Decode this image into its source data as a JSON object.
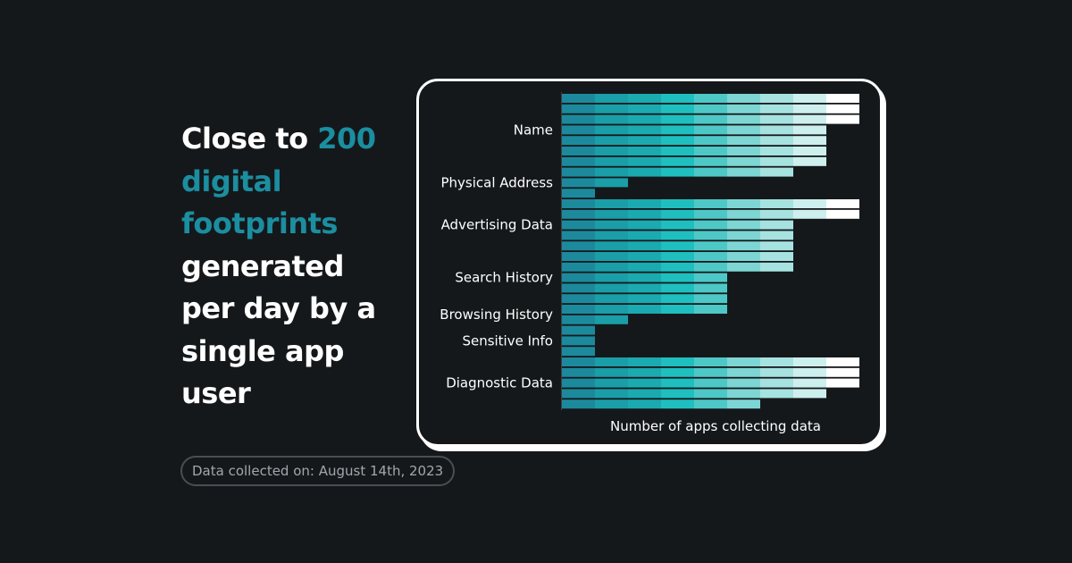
{
  "headline": {
    "part1": "Close to ",
    "accent": "200 digital footprints",
    "part2": " generated per day by a single app user"
  },
  "footer": {
    "date_note": "Data collected on: August 14th, 2023"
  },
  "colors": {
    "background": "#15181b",
    "accent": "#1b8ea0",
    "scale": [
      "#1c8a9c",
      "#1a9ea8",
      "#1aaab0",
      "#1fbfbf",
      "#4ec8c6",
      "#7dd6d4",
      "#a6e2e0",
      "#cdefee",
      "#ffffff"
    ]
  },
  "chart_data": {
    "type": "bar",
    "xlabel": "Number of apps collecting data",
    "categories": [
      "Name",
      "Physical Address",
      "Advertising Data",
      "Search History",
      "Browsing History",
      "Sensitive Info",
      "Diagnostic Data"
    ],
    "rows": [
      {
        "category": "Name",
        "value": 9
      },
      {
        "category": "Name",
        "value": 9
      },
      {
        "category": "Name",
        "value": 9
      },
      {
        "category": "Name",
        "value": 8
      },
      {
        "category": "Name",
        "value": 8
      },
      {
        "category": "Name",
        "value": 8
      },
      {
        "category": "Name",
        "value": 8
      },
      {
        "category": "Physical Address",
        "value": 7
      },
      {
        "category": "Physical Address",
        "value": 2
      },
      {
        "category": "Physical Address",
        "value": 1
      },
      {
        "category": "Advertising Data",
        "value": 9
      },
      {
        "category": "Advertising Data",
        "value": 9
      },
      {
        "category": "Advertising Data",
        "value": 7
      },
      {
        "category": "Advertising Data",
        "value": 7
      },
      {
        "category": "Advertising Data",
        "value": 7
      },
      {
        "category": "Search History",
        "value": 7
      },
      {
        "category": "Search History",
        "value": 7
      },
      {
        "category": "Search History",
        "value": 5
      },
      {
        "category": "Search History",
        "value": 5
      },
      {
        "category": "Search History",
        "value": 5
      },
      {
        "category": "Browsing History",
        "value": 5
      },
      {
        "category": "Browsing History",
        "value": 2
      },
      {
        "category": "Sensitive Info",
        "value": 1
      },
      {
        "category": "Sensitive Info",
        "value": 1
      },
      {
        "category": "Sensitive Info",
        "value": 1
      },
      {
        "category": "Diagnostic Data",
        "value": 9
      },
      {
        "category": "Diagnostic Data",
        "value": 9
      },
      {
        "category": "Diagnostic Data",
        "value": 9
      },
      {
        "category": "Diagnostic Data",
        "value": 8
      },
      {
        "category": "Diagnostic Data",
        "value": 6
      }
    ]
  }
}
